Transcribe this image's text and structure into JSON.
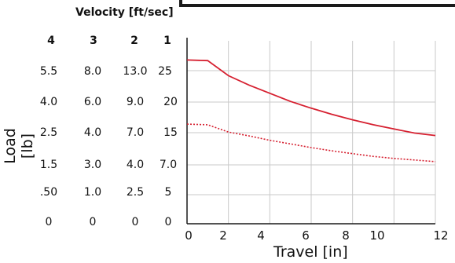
{
  "chart_data": {
    "type": "line",
    "title": "",
    "velocity_header": "Velocity [ft/sec]",
    "velocity_columns": [
      "4",
      "3",
      "2",
      "1"
    ],
    "velocity_rows": [
      [
        "5.5",
        "8.0",
        "13.0",
        "25"
      ],
      [
        "4.0",
        "6.0",
        "9.0",
        "20"
      ],
      [
        "2.5",
        "4.0",
        "7.0",
        "15"
      ],
      [
        "1.5",
        "3.0",
        "4.0",
        "7.0"
      ],
      [
        ".50",
        "1.0",
        "2.5",
        "5"
      ],
      [
        "0",
        "0",
        "0",
        "0"
      ]
    ],
    "ylabel": "Load [lb]",
    "xlabel": "Travel [in]",
    "x_ticks": [
      "0",
      "2",
      "4",
      "6",
      "8",
      "10",
      "12"
    ],
    "xlim": [
      0,
      12
    ],
    "y_ticks": [
      0,
      5,
      7,
      15,
      20,
      25
    ],
    "grid": true,
    "series": [
      {
        "style": "solid",
        "color": "#d62030",
        "x": [
          0,
          1,
          2,
          3,
          4,
          5,
          6,
          7,
          8,
          9,
          10,
          11,
          12
        ],
        "y": [
          26.7,
          26.6,
          24.2,
          22.7,
          21.4,
          20.1,
          19.0,
          18.0,
          17.1,
          16.3,
          15.6,
          14.9,
          14.3
        ]
      },
      {
        "style": "dotted",
        "color": "#d62030",
        "x": [
          0,
          1,
          2,
          3,
          4,
          5,
          6,
          7,
          8,
          9,
          10,
          11,
          12
        ],
        "y": [
          16.4,
          16.3,
          15.1,
          14.2,
          13.1,
          12.2,
          11.3,
          10.5,
          9.8,
          9.1,
          8.6,
          8.2,
          7.8
        ]
      }
    ]
  }
}
